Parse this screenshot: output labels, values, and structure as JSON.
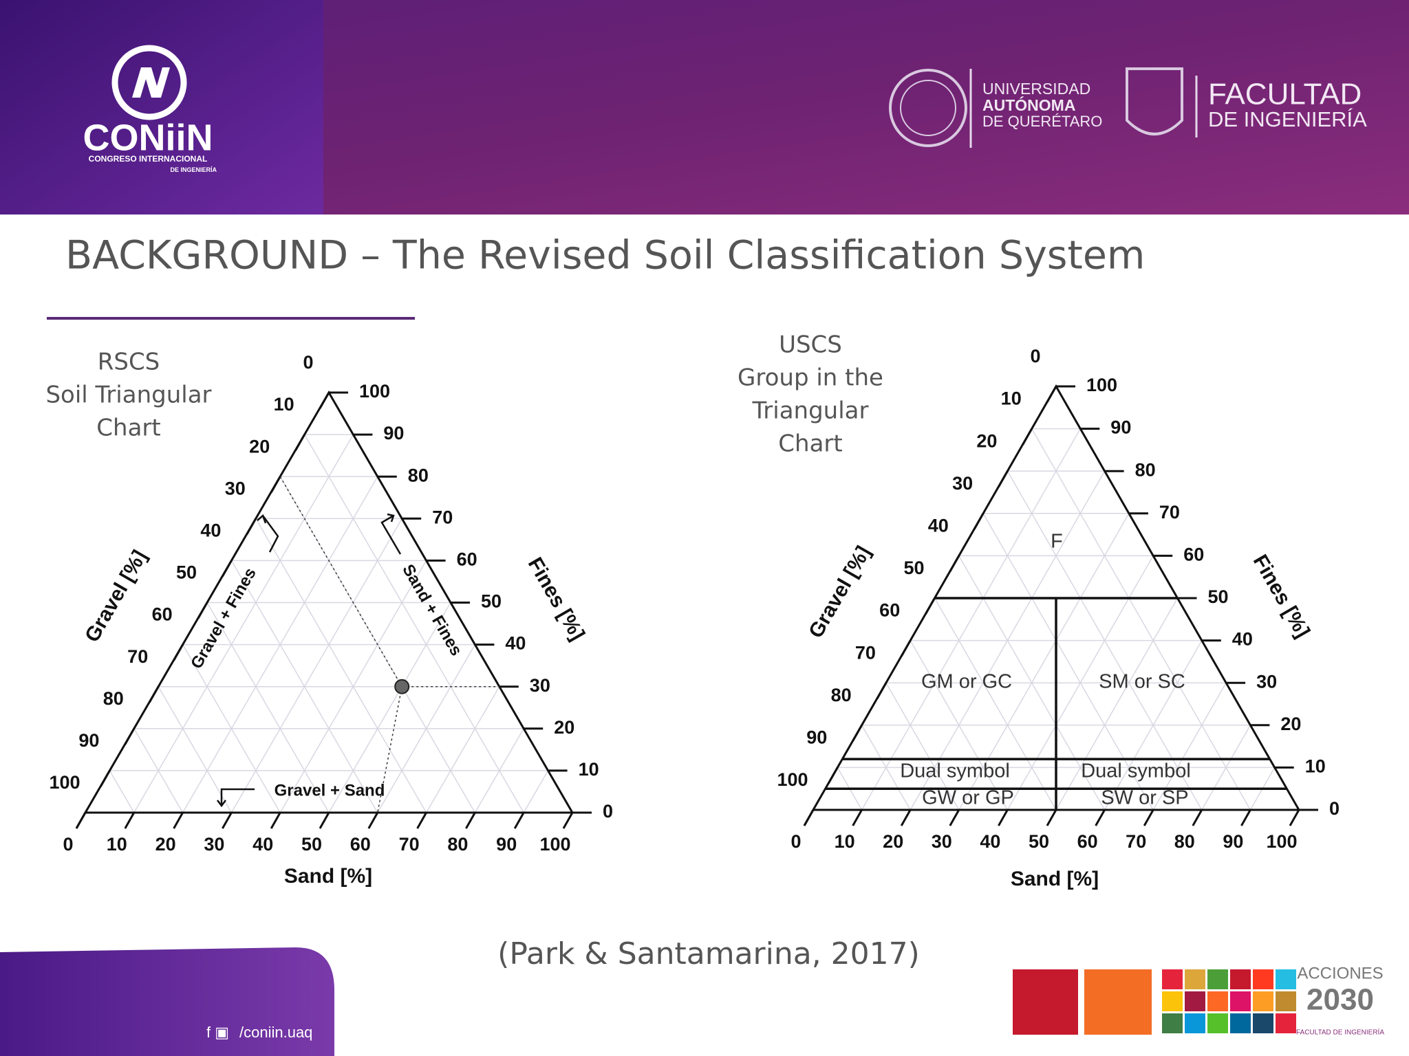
{
  "header": {
    "logo": {
      "name": "CONiiN",
      "line1": "CONGRESO INTERNACIONAL",
      "line2": "DE INGENIERÍA"
    },
    "university": [
      "UNIVERSIDAD",
      "AUTÓNOMA",
      "DE QUERÉTARO"
    ],
    "faculty": [
      "FACULTAD",
      "DE INGENIERÍA"
    ]
  },
  "title": "BACKGROUND – The Revised Soil Classification System",
  "left_panel": {
    "caption": [
      "RSCS",
      "Soil Triangular",
      "Chart"
    ],
    "chart": {
      "gravel_label": "Gravel [%]",
      "sand_label": "Sand [%]",
      "fines_label": "Fines [%]",
      "gravel_ticks": [
        0,
        10,
        20,
        30,
        40,
        50,
        60,
        70,
        80,
        90,
        100
      ],
      "sand_ticks": [
        0,
        10,
        20,
        30,
        40,
        50,
        60,
        70,
        80,
        90,
        100
      ],
      "fines_ticks": [
        0,
        10,
        20,
        30,
        40,
        50,
        60,
        70,
        80,
        90,
        100
      ],
      "annotations": [
        "Gravel + Fines",
        "Sand + Fines",
        "Gravel + Sand"
      ]
    }
  },
  "right_panel": {
    "caption": [
      "USCS",
      "Group in the",
      "Triangular",
      "Chart"
    ],
    "chart": {
      "gravel_label": "Gravel [%]",
      "sand_label": "Sand [%]",
      "fines_label": "Fines [%]",
      "gravel_ticks": [
        0,
        10,
        20,
        30,
        40,
        50,
        60,
        70,
        80,
        90,
        100
      ],
      "sand_ticks": [
        0,
        10,
        20,
        30,
        40,
        50,
        60,
        70,
        80,
        90,
        100
      ],
      "fines_ticks": [
        0,
        10,
        20,
        30,
        40,
        50,
        60,
        70,
        80,
        90,
        100
      ],
      "zones": [
        "F",
        "GM or GC",
        "SM or SC",
        "Dual symbol",
        "Dual symbol",
        "GW or GP",
        "SW or SP"
      ]
    }
  },
  "citation": "(Park & Santamarina, 2017)",
  "footer": {
    "social": "/coniin.uaq",
    "acciones": "ACCIONES",
    "year": "2030",
    "faculty": "FACULTAD DE INGENIERÍA"
  }
}
